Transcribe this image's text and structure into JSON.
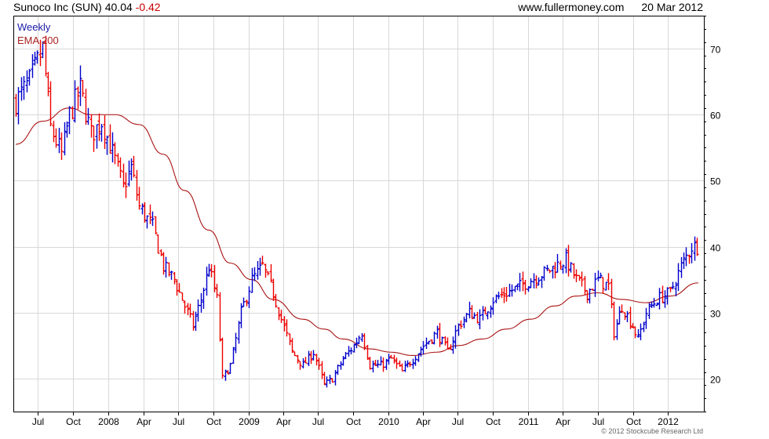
{
  "header": {
    "company": "Sunoco Inc",
    "ticker": "(SUN)",
    "price": "40.04",
    "change": "-0.42",
    "website": "www.fullermoney.com",
    "date": "20 Mar 2012"
  },
  "legend": {
    "interval": "Weekly",
    "indicator": "EMA 200"
  },
  "copyright": "© 2012 Stockcube Research Ltd",
  "colors": {
    "up": "#0000cc",
    "down": "#ee0000",
    "ema": "#aa1111",
    "grid": "#d8d8d8",
    "frame": "#000000"
  },
  "chart_data": {
    "type": "candlestick-hilo",
    "interval": "Weekly",
    "x_range": [
      "2007-05-04",
      "2012-03-20"
    ],
    "y_range": [
      15,
      75
    ],
    "y_ticks": [
      20,
      30,
      40,
      50,
      60,
      70
    ],
    "x_ticks": [
      {
        "label": "Jul",
        "date": "2007-07-01"
      },
      {
        "label": "Oct",
        "date": "2007-10-01"
      },
      {
        "label": "2008",
        "date": "2008-01-01"
      },
      {
        "label": "Apr",
        "date": "2008-04-01"
      },
      {
        "label": "Jul",
        "date": "2008-07-01"
      },
      {
        "label": "Oct",
        "date": "2008-10-01"
      },
      {
        "label": "2009",
        "date": "2009-01-01"
      },
      {
        "label": "Apr",
        "date": "2009-04-01"
      },
      {
        "label": "Jul",
        "date": "2009-07-01"
      },
      {
        "label": "Oct",
        "date": "2009-10-01"
      },
      {
        "label": "2010",
        "date": "2010-01-01"
      },
      {
        "label": "Apr",
        "date": "2010-04-01"
      },
      {
        "label": "Jul",
        "date": "2010-07-01"
      },
      {
        "label": "Oct",
        "date": "2010-10-01"
      },
      {
        "label": "2011",
        "date": "2011-01-01"
      },
      {
        "label": "Apr",
        "date": "2011-04-01"
      },
      {
        "label": "Jul",
        "date": "2011-07-01"
      },
      {
        "label": "Oct",
        "date": "2011-10-01"
      },
      {
        "label": "2012",
        "date": "2012-01-01"
      }
    ],
    "price_path": [
      [
        "2007-05-04",
        62
      ],
      [
        "2007-06-08",
        65
      ],
      [
        "2007-07-13",
        70
      ],
      [
        "2007-08-03",
        58
      ],
      [
        "2007-08-31",
        54
      ],
      [
        "2007-09-21",
        60
      ],
      [
        "2007-10-19",
        64
      ],
      [
        "2007-11-16",
        57
      ],
      [
        "2007-12-14",
        59
      ],
      [
        "2008-01-18",
        53
      ],
      [
        "2008-02-08",
        49
      ],
      [
        "2008-02-29",
        52
      ],
      [
        "2008-03-21",
        46
      ],
      [
        "2008-04-25",
        43
      ],
      [
        "2008-05-23",
        37
      ],
      [
        "2008-06-20",
        35
      ],
      [
        "2008-07-18",
        31
      ],
      [
        "2008-08-08",
        28
      ],
      [
        "2008-08-29",
        32
      ],
      [
        "2008-09-19",
        37
      ],
      [
        "2008-10-10",
        32
      ],
      [
        "2008-10-24",
        20
      ],
      [
        "2008-11-14",
        22
      ],
      [
        "2008-12-12",
        30
      ],
      [
        "2009-01-09",
        35
      ],
      [
        "2009-02-06",
        37
      ],
      [
        "2009-03-06",
        33
      ],
      [
        "2009-03-27",
        29
      ],
      [
        "2009-04-24",
        24
      ],
      [
        "2009-05-22",
        22
      ],
      [
        "2009-06-19",
        24
      ],
      [
        "2009-07-17",
        19
      ],
      [
        "2009-08-07",
        20
      ],
      [
        "2009-09-04",
        23
      ],
      [
        "2009-10-02",
        25
      ],
      [
        "2009-10-23",
        27
      ],
      [
        "2009-11-13",
        22
      ],
      [
        "2009-12-11",
        22
      ],
      [
        "2010-01-08",
        23
      ],
      [
        "2010-02-05",
        21
      ],
      [
        "2010-03-05",
        23
      ],
      [
        "2010-04-02",
        25
      ],
      [
        "2010-05-07",
        27
      ],
      [
        "2010-06-04",
        24
      ],
      [
        "2010-07-02",
        28
      ],
      [
        "2010-07-30",
        30
      ],
      [
        "2010-08-27",
        29
      ],
      [
        "2010-10-01",
        32
      ],
      [
        "2010-11-05",
        33
      ],
      [
        "2010-12-10",
        34
      ],
      [
        "2011-01-07",
        35
      ],
      [
        "2011-02-11",
        36
      ],
      [
        "2011-03-11",
        37
      ],
      [
        "2011-04-08",
        38
      ],
      [
        "2011-05-06",
        35
      ],
      [
        "2011-06-03",
        33
      ],
      [
        "2011-07-01",
        35
      ],
      [
        "2011-07-29",
        34
      ],
      [
        "2011-08-12",
        27
      ],
      [
        "2011-09-02",
        31
      ],
      [
        "2011-09-30",
        28
      ],
      [
        "2011-10-14",
        26
      ],
      [
        "2011-11-04",
        30
      ],
      [
        "2011-12-02",
        32
      ],
      [
        "2012-01-06",
        33
      ],
      [
        "2012-02-03",
        37
      ],
      [
        "2012-03-02",
        40
      ],
      [
        "2012-03-20",
        40.04
      ]
    ],
    "ema_path": [
      [
        "2007-05-04",
        55.5
      ],
      [
        "2007-07-13",
        59
      ],
      [
        "2007-09-21",
        61
      ],
      [
        "2007-11-16",
        60
      ],
      [
        "2008-01-18",
        60
      ],
      [
        "2008-03-21",
        58.5
      ],
      [
        "2008-05-23",
        54
      ],
      [
        "2008-07-18",
        48.5
      ],
      [
        "2008-09-19",
        42.5
      ],
      [
        "2008-11-14",
        37.5
      ],
      [
        "2009-01-09",
        35
      ],
      [
        "2009-03-06",
        32
      ],
      [
        "2009-05-22",
        29
      ],
      [
        "2009-07-17",
        27.5
      ],
      [
        "2009-09-04",
        26
      ],
      [
        "2009-11-13",
        24.5
      ],
      [
        "2010-01-08",
        24
      ],
      [
        "2010-03-05",
        23.5
      ],
      [
        "2010-05-07",
        24
      ],
      [
        "2010-07-02",
        25
      ],
      [
        "2010-09-03",
        26
      ],
      [
        "2010-11-05",
        27.5
      ],
      [
        "2011-01-07",
        29
      ],
      [
        "2011-03-11",
        31
      ],
      [
        "2011-05-06",
        32.5
      ],
      [
        "2011-07-01",
        33
      ],
      [
        "2011-09-02",
        32
      ],
      [
        "2011-11-04",
        31.5
      ],
      [
        "2012-01-06",
        32.5
      ],
      [
        "2012-03-20",
        34.5
      ]
    ]
  }
}
